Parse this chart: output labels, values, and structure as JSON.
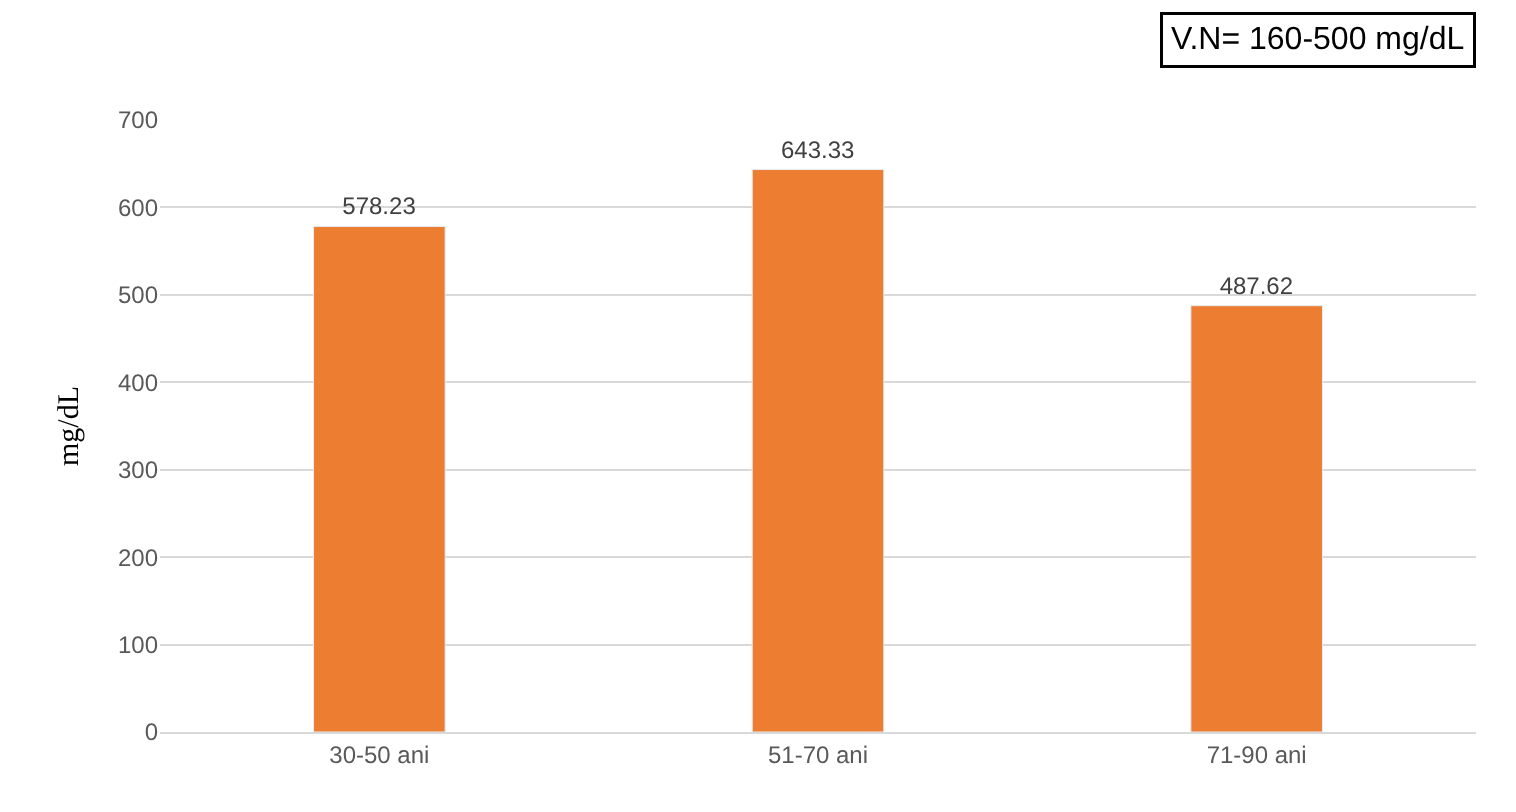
{
  "chart_data": {
    "type": "bar",
    "ylabel": "mg/dL",
    "categories": [
      "30-50 ani",
      "51-70 ani",
      "71-90 ani"
    ],
    "values": [
      578.23,
      643.33,
      487.62
    ],
    "color": "#ed7d31",
    "ylim": [
      0,
      700
    ],
    "yticks": [
      0,
      100,
      200,
      300,
      400,
      500,
      600,
      700
    ],
    "grid": "y",
    "data_labels": true,
    "legend": false,
    "annotations": [
      "V.N= 160-500 mg/dL"
    ]
  }
}
